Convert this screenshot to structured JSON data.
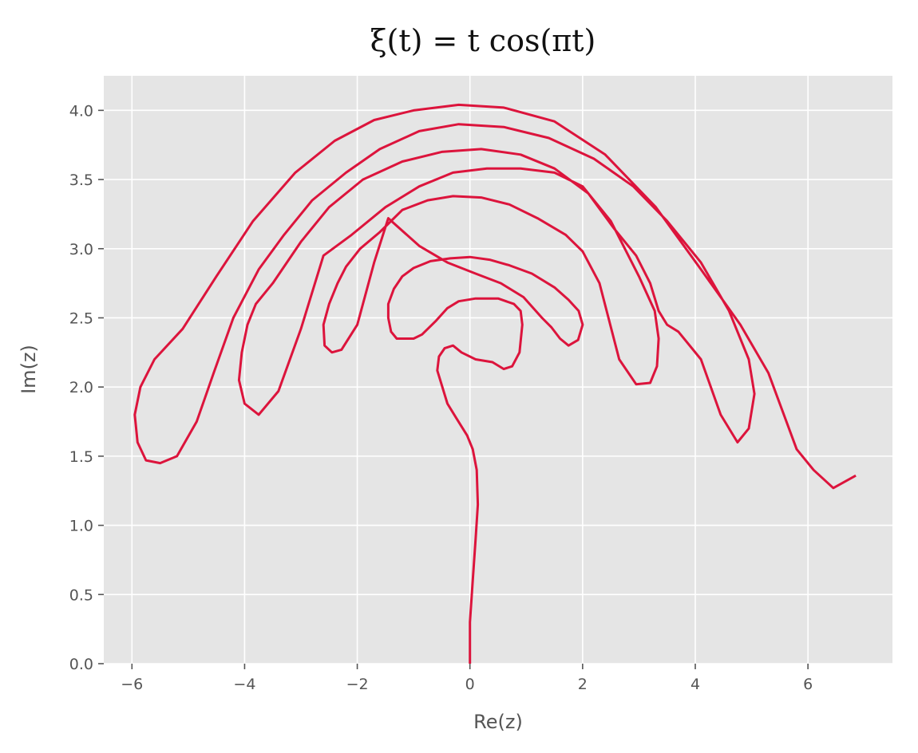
{
  "chart_data": {
    "type": "line",
    "title": "ξ(t) = t  cos(πt)",
    "xlabel": "Re(z)",
    "ylabel": "Im(z)",
    "xlim": [
      -6.5,
      7.5
    ],
    "ylim": [
      0.0,
      4.25
    ],
    "xticks": [
      -6,
      -4,
      -2,
      0,
      2,
      4,
      6
    ],
    "xtick_labels": [
      "−6",
      "−4",
      "−2",
      "0",
      "2",
      "4",
      "6"
    ],
    "yticks": [
      0.0,
      0.5,
      1.0,
      1.5,
      2.0,
      2.5,
      3.0,
      3.5,
      4.0
    ],
    "ytick_labels": [
      "0.0",
      "0.5",
      "1.0",
      "1.5",
      "2.0",
      "2.5",
      "3.0",
      "3.5",
      "4.0"
    ],
    "grid": true,
    "background": "#e5e5e5",
    "grid_color": "#ffffff",
    "line_color": "#dc143c",
    "series": [
      {
        "points": [
          [
            0.0,
            0.0
          ],
          [
            0.0,
            0.3
          ],
          [
            0.05,
            0.6
          ],
          [
            0.1,
            0.9
          ],
          [
            0.14,
            1.15
          ],
          [
            0.12,
            1.4
          ],
          [
            0.05,
            1.55
          ],
          [
            -0.05,
            1.65
          ],
          [
            -0.25,
            1.78
          ],
          [
            -0.4,
            1.88
          ],
          [
            -0.55,
            2.08
          ],
          [
            -0.58,
            2.12
          ],
          [
            -0.55,
            2.22
          ],
          [
            -0.45,
            2.28
          ],
          [
            -0.3,
            2.3
          ],
          [
            -0.15,
            2.25
          ],
          [
            0.1,
            2.2
          ],
          [
            0.4,
            2.18
          ],
          [
            0.6,
            2.13
          ],
          [
            0.75,
            2.15
          ],
          [
            0.88,
            2.25
          ],
          [
            0.93,
            2.45
          ],
          [
            0.9,
            2.55
          ],
          [
            0.78,
            2.6
          ],
          [
            0.5,
            2.64
          ],
          [
            0.1,
            2.64
          ],
          [
            -0.2,
            2.62
          ],
          [
            -0.4,
            2.57
          ],
          [
            -0.6,
            2.48
          ],
          [
            -0.85,
            2.38
          ],
          [
            -1.0,
            2.35
          ],
          [
            -1.3,
            2.35
          ],
          [
            -1.4,
            2.4
          ],
          [
            -1.45,
            2.5
          ],
          [
            -1.45,
            2.6
          ],
          [
            -1.35,
            2.71
          ],
          [
            -1.2,
            2.8
          ],
          [
            -1.0,
            2.86
          ],
          [
            -0.7,
            2.91
          ],
          [
            -0.35,
            2.93
          ],
          [
            0.0,
            2.94
          ],
          [
            0.35,
            2.92
          ],
          [
            0.7,
            2.88
          ],
          [
            1.1,
            2.82
          ],
          [
            1.5,
            2.72
          ],
          [
            1.75,
            2.63
          ],
          [
            1.93,
            2.55
          ],
          [
            2.0,
            2.45
          ],
          [
            1.92,
            2.34
          ],
          [
            1.75,
            2.3
          ],
          [
            1.6,
            2.35
          ],
          [
            1.45,
            2.43
          ],
          [
            1.28,
            2.5
          ],
          [
            0.95,
            2.65
          ],
          [
            0.55,
            2.75
          ],
          [
            0.1,
            2.82
          ],
          [
            -0.4,
            2.9
          ],
          [
            -0.9,
            3.02
          ],
          [
            -1.45,
            3.22
          ],
          [
            -1.7,
            2.9
          ],
          [
            -2.0,
            2.45
          ],
          [
            -2.28,
            2.27
          ],
          [
            -2.45,
            2.25
          ],
          [
            -2.58,
            2.3
          ],
          [
            -2.6,
            2.45
          ],
          [
            -2.5,
            2.6
          ],
          [
            -2.35,
            2.75
          ],
          [
            -2.2,
            2.87
          ],
          [
            -1.95,
            3.0
          ],
          [
            -1.6,
            3.12
          ],
          [
            -1.2,
            3.28
          ],
          [
            -0.75,
            3.35
          ],
          [
            -0.3,
            3.38
          ],
          [
            0.2,
            3.37
          ],
          [
            0.7,
            3.32
          ],
          [
            1.2,
            3.22
          ],
          [
            1.7,
            3.1
          ],
          [
            2.0,
            2.98
          ],
          [
            2.3,
            2.75
          ],
          [
            2.65,
            2.2
          ],
          [
            2.95,
            2.02
          ],
          [
            3.2,
            2.03
          ],
          [
            3.32,
            2.15
          ],
          [
            3.35,
            2.35
          ],
          [
            3.28,
            2.55
          ],
          [
            3.0,
            2.8
          ],
          [
            2.5,
            3.2
          ],
          [
            2.0,
            3.45
          ],
          [
            1.5,
            3.55
          ],
          [
            0.9,
            3.58
          ],
          [
            0.3,
            3.58
          ],
          [
            -0.3,
            3.55
          ],
          [
            -0.9,
            3.45
          ],
          [
            -1.5,
            3.3
          ],
          [
            -2.1,
            3.1
          ],
          [
            -2.6,
            2.95
          ],
          [
            -3.0,
            2.42
          ],
          [
            -3.4,
            1.97
          ],
          [
            -3.75,
            1.8
          ],
          [
            -4.0,
            1.88
          ],
          [
            -4.1,
            2.05
          ],
          [
            -4.05,
            2.25
          ],
          [
            -3.95,
            2.45
          ],
          [
            -3.8,
            2.6
          ],
          [
            -3.5,
            2.75
          ],
          [
            -3.0,
            3.05
          ],
          [
            -2.5,
            3.3
          ],
          [
            -1.9,
            3.5
          ],
          [
            -1.2,
            3.63
          ],
          [
            -0.5,
            3.7
          ],
          [
            0.2,
            3.72
          ],
          [
            0.9,
            3.68
          ],
          [
            1.5,
            3.58
          ],
          [
            2.1,
            3.4
          ],
          [
            2.55,
            3.15
          ],
          [
            2.95,
            2.95
          ],
          [
            3.2,
            2.75
          ],
          [
            3.35,
            2.55
          ],
          [
            3.5,
            2.45
          ],
          [
            3.7,
            2.4
          ],
          [
            4.1,
            2.2
          ],
          [
            4.45,
            1.8
          ],
          [
            4.75,
            1.6
          ],
          [
            4.95,
            1.7
          ],
          [
            5.05,
            1.95
          ],
          [
            4.95,
            2.2
          ],
          [
            4.6,
            2.55
          ],
          [
            4.1,
            2.9
          ],
          [
            3.5,
            3.2
          ],
          [
            2.9,
            3.45
          ],
          [
            2.2,
            3.65
          ],
          [
            1.4,
            3.8
          ],
          [
            0.6,
            3.88
          ],
          [
            -0.2,
            3.9
          ],
          [
            -0.9,
            3.85
          ],
          [
            -1.6,
            3.72
          ],
          [
            -2.2,
            3.55
          ],
          [
            -2.8,
            3.35
          ],
          [
            -3.3,
            3.1
          ],
          [
            -3.75,
            2.85
          ],
          [
            -4.2,
            2.5
          ],
          [
            -4.55,
            2.1
          ],
          [
            -4.85,
            1.75
          ],
          [
            -5.2,
            1.5
          ],
          [
            -5.5,
            1.45
          ],
          [
            -5.75,
            1.47
          ],
          [
            -5.9,
            1.6
          ],
          [
            -5.95,
            1.8
          ],
          [
            -5.85,
            2.0
          ],
          [
            -5.6,
            2.2
          ],
          [
            -5.1,
            2.42
          ],
          [
            -4.5,
            2.8
          ],
          [
            -3.85,
            3.2
          ],
          [
            -3.1,
            3.55
          ],
          [
            -2.4,
            3.78
          ],
          [
            -1.7,
            3.93
          ],
          [
            -1.0,
            4.0
          ],
          [
            -0.2,
            4.04
          ],
          [
            0.6,
            4.02
          ],
          [
            1.5,
            3.92
          ],
          [
            2.4,
            3.68
          ],
          [
            3.3,
            3.3
          ],
          [
            4.1,
            2.85
          ],
          [
            4.8,
            2.45
          ],
          [
            5.3,
            2.1
          ],
          [
            5.8,
            1.55
          ],
          [
            6.1,
            1.4
          ],
          [
            6.45,
            1.27
          ],
          [
            6.85,
            1.36
          ]
        ]
      }
    ]
  }
}
